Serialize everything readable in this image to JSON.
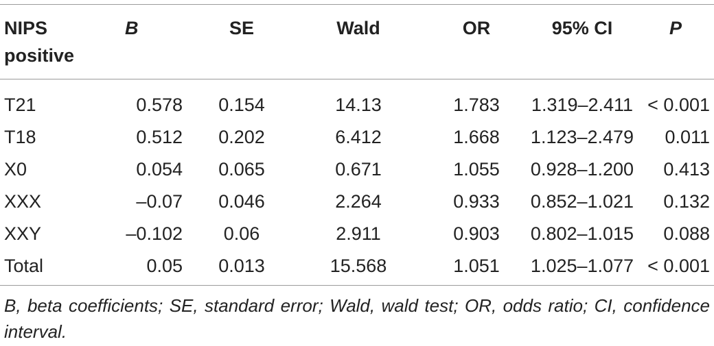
{
  "table": {
    "headers": {
      "name_line1": "NIPS",
      "name_line2": "positive",
      "b": "B",
      "se": "SE",
      "wald": "Wald",
      "or": "OR",
      "ci": "95% CI",
      "p": "P"
    },
    "rows": [
      {
        "name": "T21",
        "b": "0.578",
        "se": "0.154",
        "wald": "14.13",
        "or": "1.783",
        "ci": "1.319–2.411",
        "p": "< 0.001"
      },
      {
        "name": "T18",
        "b": "0.512",
        "se": "0.202",
        "wald": "6.412",
        "or": "1.668",
        "ci": "1.123–2.479",
        "p": "0.011"
      },
      {
        "name": "X0",
        "b": "0.054",
        "se": "0.065",
        "wald": "0.671",
        "or": "1.055",
        "ci": "0.928–1.200",
        "p": "0.413"
      },
      {
        "name": "XXX",
        "b": "–0.07",
        "se": "0.046",
        "wald": "2.264",
        "or": "0.933",
        "ci": "0.852–1.021",
        "p": "0.132"
      },
      {
        "name": "XXY",
        "b": "–0.102",
        "se": "0.06",
        "wald": "2.911",
        "or": "0.903",
        "ci": "0.802–1.015",
        "p": "0.088"
      },
      {
        "name": "Total",
        "b": "0.05",
        "se": "0.013",
        "wald": "15.568",
        "or": "1.051",
        "ci": "1.025–1.077",
        "p": "< 0.001"
      }
    ]
  },
  "footnote": "B, beta coefficients; SE, standard error; Wald, wald test; OR, odds ratio; CI, confidence interval."
}
